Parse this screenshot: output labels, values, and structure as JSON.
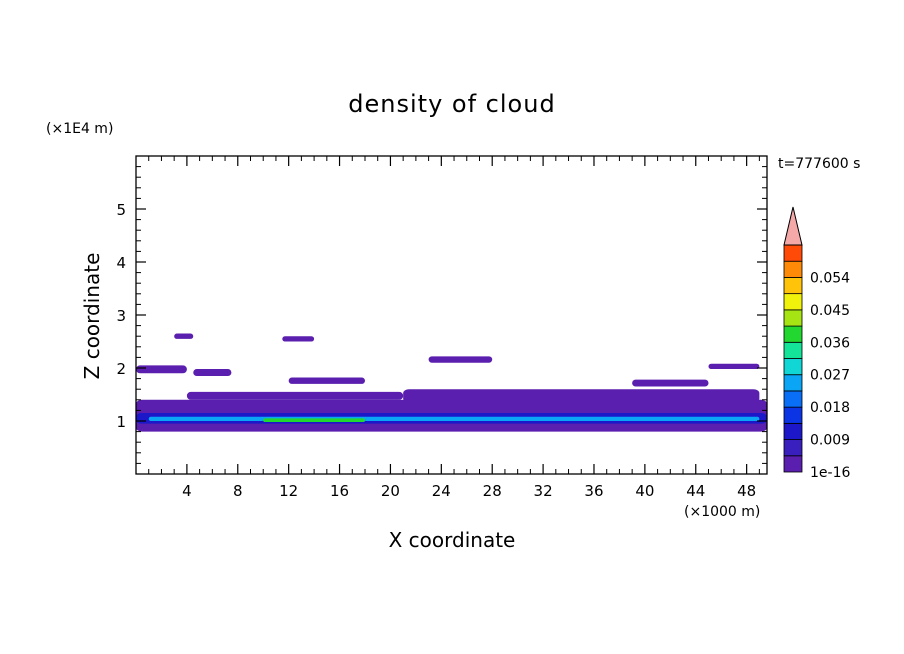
{
  "chart_data": {
    "type": "heatmap",
    "title": "density of cloud",
    "xlabel": "X coordinate",
    "ylabel": "Z coordinate",
    "x_unit": "(×1000 m)",
    "y_unit": "(×1E4 m)",
    "time_label": "t=777600 s",
    "xlim": [
      0,
      49.6
    ],
    "ylim": [
      0,
      6
    ],
    "x_ticks": [
      4,
      8,
      12,
      16,
      20,
      24,
      28,
      32,
      36,
      40,
      44,
      48
    ],
    "x_tick_labels": [
      "4",
      "8",
      "12",
      "16",
      "20",
      "24",
      "28",
      "32",
      "36",
      "40",
      "44",
      "48"
    ],
    "y_ticks": [
      1,
      2,
      3,
      4,
      5
    ],
    "y_tick_labels": [
      "1",
      "2",
      "3",
      "4",
      "5"
    ],
    "colorbar": {
      "levels": [
        1e-16,
        0.0045,
        0.009,
        0.0135,
        0.018,
        0.0225,
        0.027,
        0.0315,
        0.036,
        0.0405,
        0.045,
        0.0495,
        0.054,
        0.0585
      ],
      "labeled_levels": [
        "1e-16",
        "0.009",
        "0.018",
        "0.027",
        "0.036",
        "0.045",
        "0.054"
      ],
      "colors": [
        "#5a1fae",
        "#3a1fbf",
        "#1c17c9",
        "#0a34e4",
        "#0a6ff7",
        "#0aa5f5",
        "#11d6d6",
        "#14e39a",
        "#22d830",
        "#a6e414",
        "#f1f20c",
        "#ffc40a",
        "#ff8a08",
        "#ff4a08",
        "#f21508"
      ],
      "overflow_color": "#f4a8a8"
    },
    "regions": [
      {
        "level": 0,
        "x": [
          0,
          49.6
        ],
        "z": [
          0.8,
          1.4
        ]
      },
      {
        "level": 0,
        "x": [
          4,
          21
        ],
        "z": [
          1.4,
          1.55
        ]
      },
      {
        "level": 0,
        "x": [
          21,
          49
        ],
        "z": [
          1.35,
          1.6
        ]
      },
      {
        "level": 0,
        "x": [
          0,
          4
        ],
        "z": [
          1.9,
          2.05
        ]
      },
      {
        "level": 0,
        "x": [
          4.5,
          7.5
        ],
        "z": [
          1.85,
          1.98
        ]
      },
      {
        "level": 0,
        "x": [
          11.5,
          14
        ],
        "z": [
          2.5,
          2.6
        ]
      },
      {
        "level": 0,
        "x": [
          3,
          4.5
        ],
        "z": [
          2.55,
          2.65
        ]
      },
      {
        "level": 0,
        "x": [
          12,
          18
        ],
        "z": [
          1.7,
          1.82
        ]
      },
      {
        "level": 0,
        "x": [
          23,
          28
        ],
        "z": [
          2.1,
          2.22
        ]
      },
      {
        "level": 0,
        "x": [
          39,
          45
        ],
        "z": [
          1.65,
          1.78
        ]
      },
      {
        "level": 0,
        "x": [
          45,
          49
        ],
        "z": [
          1.98,
          2.08
        ]
      },
      {
        "level": 2,
        "x": [
          0,
          49.6
        ],
        "z": [
          0.95,
          1.15
        ]
      },
      {
        "level": 5,
        "x": [
          1,
          49
        ],
        "z": [
          1.0,
          1.08
        ]
      },
      {
        "level": 8,
        "x": [
          10,
          18
        ],
        "z": [
          0.98,
          1.05
        ]
      }
    ]
  }
}
